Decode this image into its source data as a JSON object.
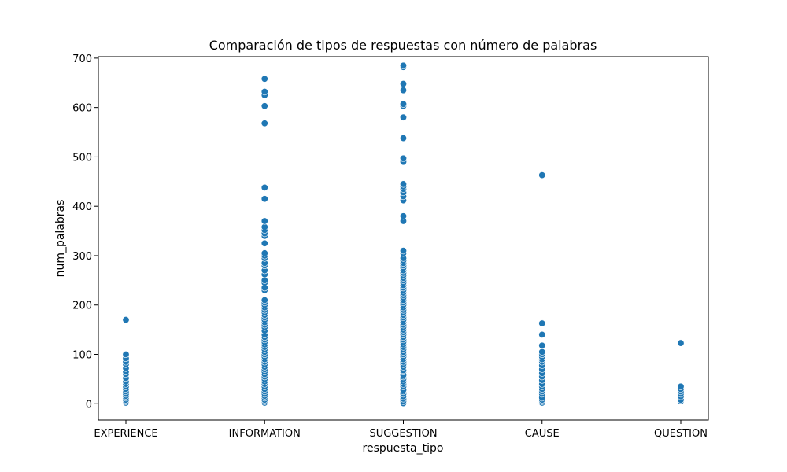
{
  "chart_data": {
    "type": "scatter",
    "title": "Comparación de tipos de respuestas con número de palabras",
    "xlabel": "respuesta_tipo",
    "ylabel": "num_palabras",
    "categories": [
      "EXPERIENCE",
      "INFORMATION",
      "SUGGESTION",
      "CAUSE",
      "QUESTION"
    ],
    "ylim": [
      -33,
      703
    ],
    "yticks": [
      0,
      100,
      200,
      300,
      400,
      500,
      600,
      700
    ],
    "grid": false,
    "marker_color": "#1f77b4",
    "points": {
      "EXPERIENCE": [
        2,
        5,
        8,
        12,
        16,
        20,
        25,
        30,
        35,
        40,
        45,
        52,
        60,
        65,
        72,
        80,
        85,
        92,
        100,
        170
      ],
      "INFORMATION": [
        2,
        5,
        8,
        12,
        16,
        20,
        25,
        30,
        35,
        40,
        45,
        50,
        55,
        60,
        65,
        70,
        75,
        80,
        85,
        90,
        95,
        100,
        105,
        110,
        115,
        120,
        125,
        130,
        135,
        140,
        148,
        155,
        160,
        165,
        170,
        175,
        180,
        185,
        190,
        195,
        200,
        205,
        210,
        230,
        235,
        245,
        250,
        262,
        270,
        280,
        285,
        295,
        300,
        305,
        325,
        340,
        345,
        352,
        358,
        370,
        415,
        438,
        568,
        603,
        625,
        632,
        658
      ],
      "SUGGESTION": [
        1,
        5,
        10,
        15,
        20,
        25,
        28,
        35,
        40,
        45,
        50,
        55,
        58,
        65,
        68,
        75,
        80,
        85,
        90,
        95,
        100,
        105,
        110,
        115,
        120,
        125,
        130,
        135,
        140,
        145,
        150,
        155,
        160,
        165,
        170,
        175,
        180,
        185,
        190,
        195,
        200,
        205,
        210,
        215,
        220,
        225,
        230,
        235,
        240,
        245,
        250,
        255,
        260,
        265,
        270,
        275,
        280,
        285,
        290,
        295,
        305,
        310,
        370,
        380,
        412,
        420,
        428,
        435,
        440,
        445,
        490,
        497,
        538,
        580,
        603,
        607,
        635,
        648,
        682,
        685
      ],
      "CAUSE": [
        2,
        5,
        8,
        12,
        20,
        25,
        30,
        35,
        40,
        48,
        55,
        62,
        70,
        78,
        85,
        90,
        95,
        100,
        105,
        118,
        140,
        163,
        463
      ],
      "QUESTION": [
        5,
        8,
        15,
        20,
        25,
        30,
        35,
        123
      ]
    }
  }
}
